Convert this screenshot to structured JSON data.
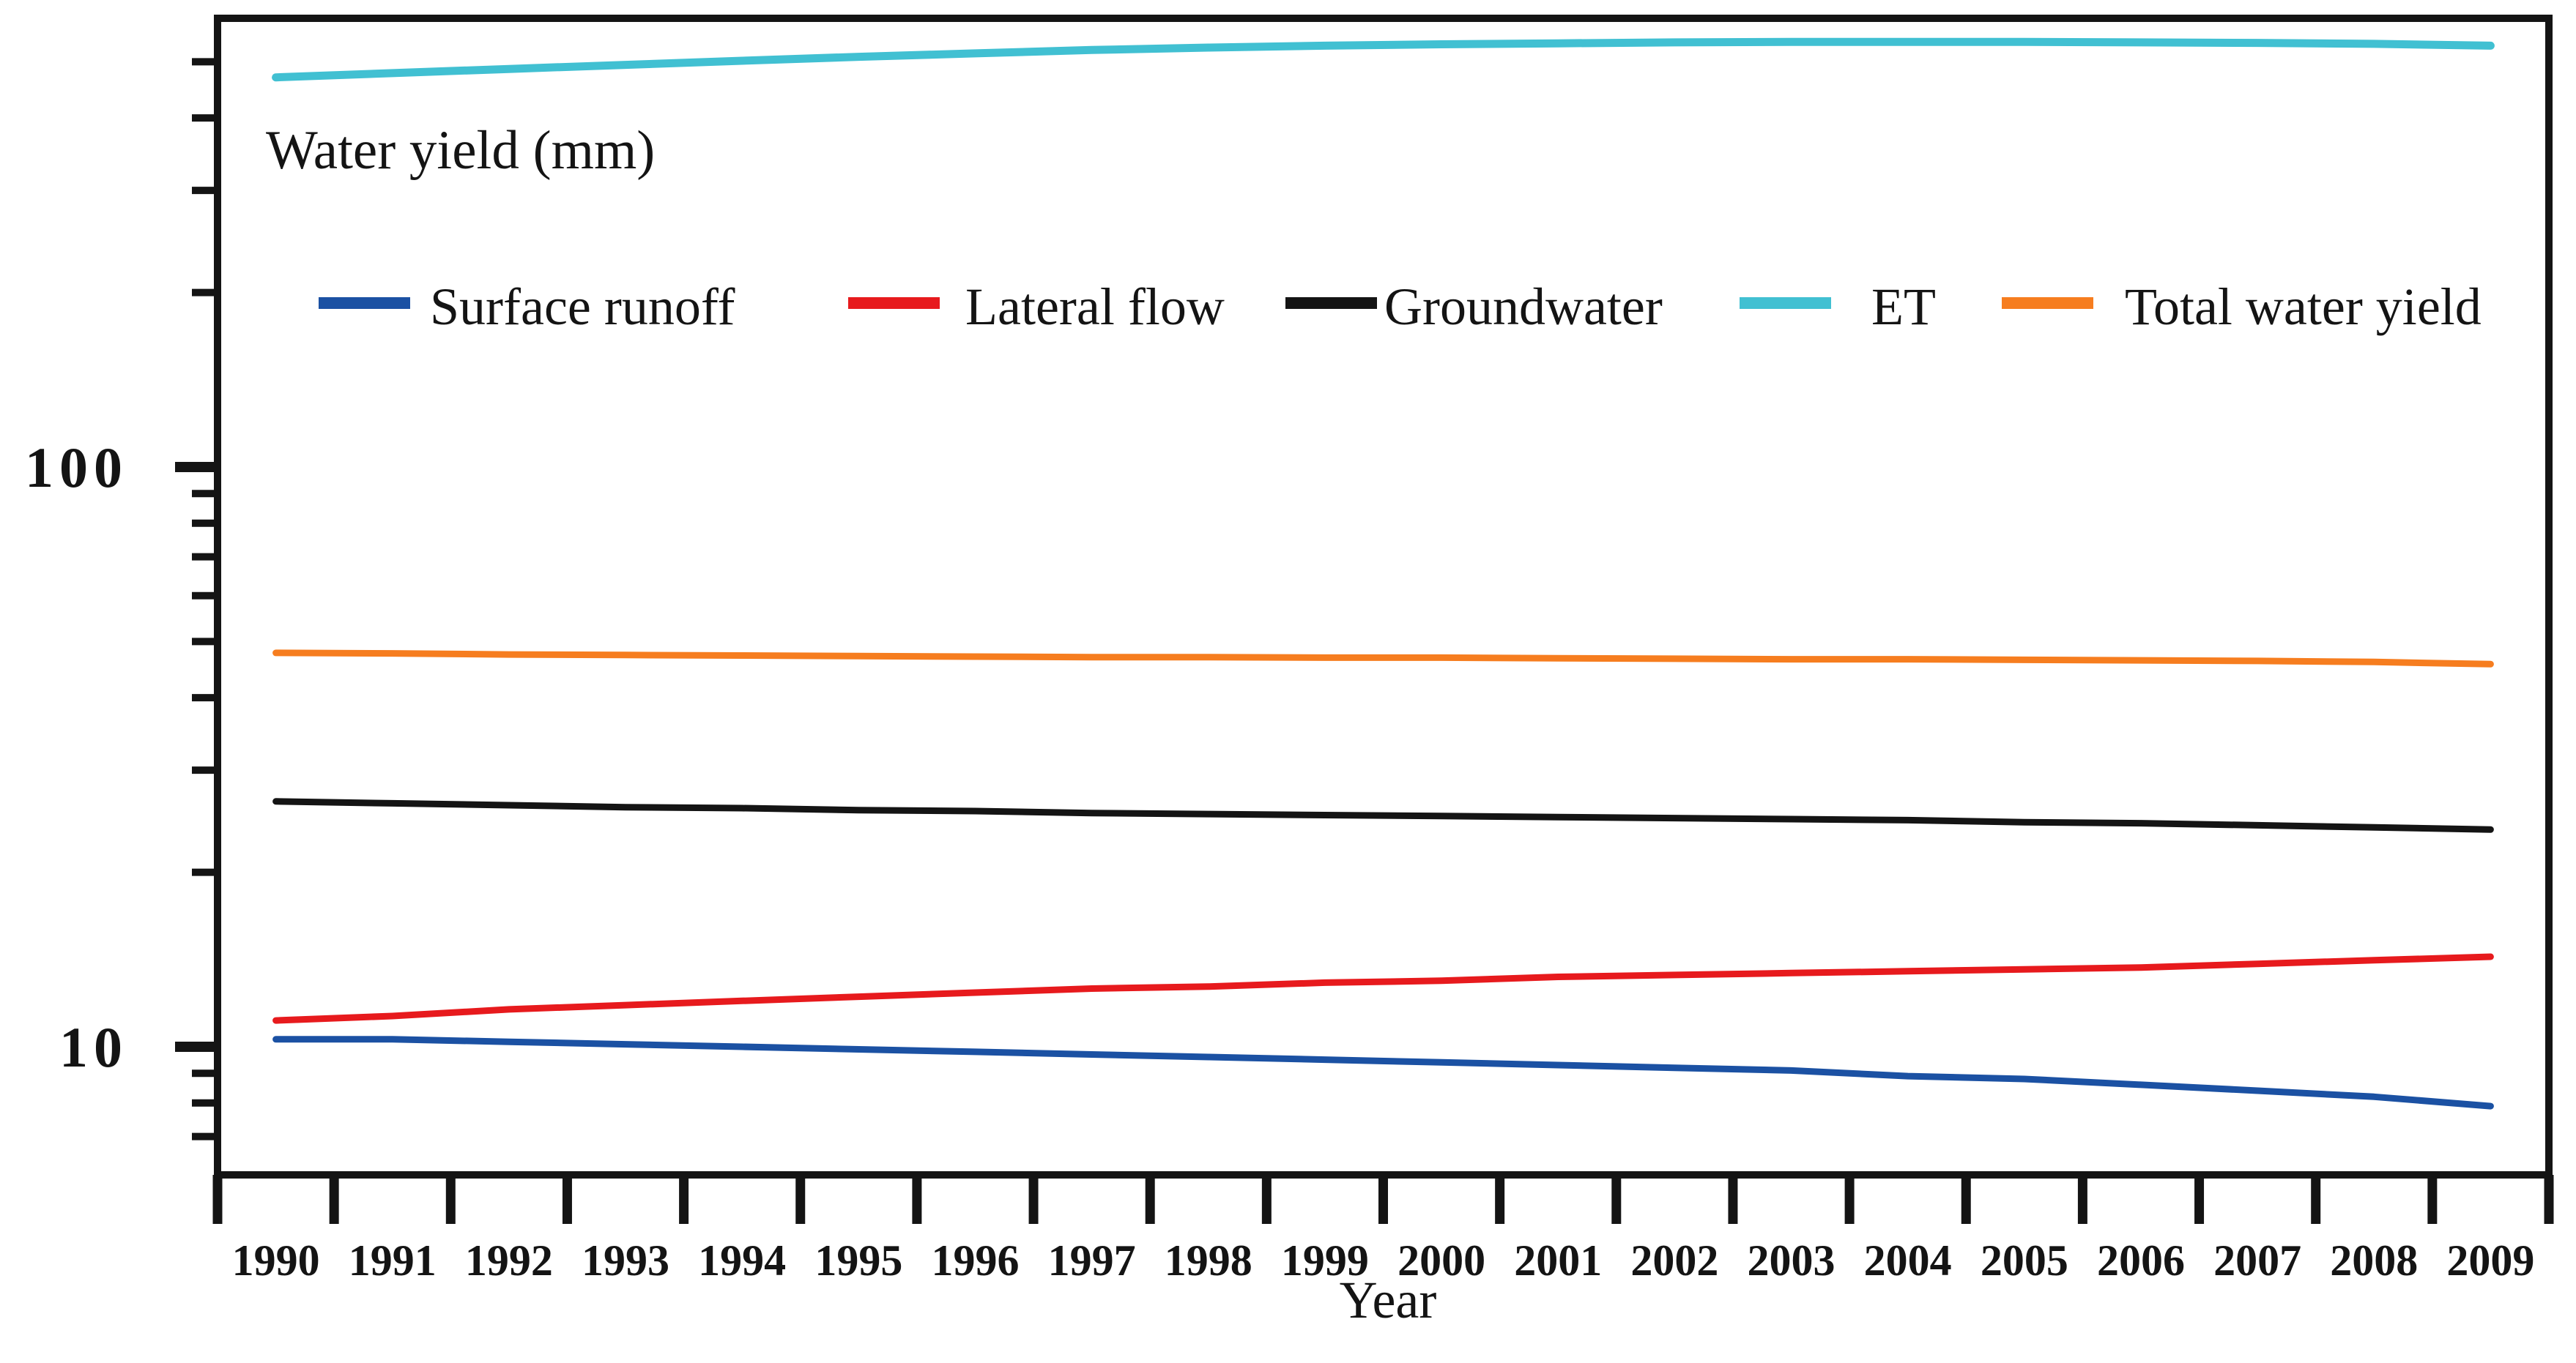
{
  "title": "Water yield (mm)",
  "axes": {
    "x_label": "Year",
    "y_major_ticks": [
      "100",
      "10"
    ],
    "x_tick_labels": [
      "1990",
      "1991",
      "1992",
      "1993",
      "1994",
      "1995",
      "1996",
      "1997",
      "1998",
      "1999",
      "2000",
      "2001",
      "2002",
      "2003",
      "2004",
      "2005",
      "2006",
      "2007",
      "2008",
      "2009"
    ]
  },
  "colors": {
    "surface_runoff": "#1b51a3",
    "lateral_flow": "#e71a1d",
    "groundwater": "#141414",
    "et": "#41c0d2",
    "total_water_yield": "#f67d1f",
    "axis": "#141414",
    "background": "#ffffff"
  },
  "legend": [
    {
      "label": "Surface runoff",
      "color": "#1b51a3"
    },
    {
      "label": "Lateral flow",
      "color": "#e71a1d"
    },
    {
      "label": "Groundwater",
      "color": "#141414"
    },
    {
      "label": "ET",
      "color": "#41c0d2"
    },
    {
      "label": "Total water yield",
      "color": "#f67d1f"
    }
  ],
  "chart_data": {
    "type": "line",
    "title": "Water yield (mm)",
    "xlabel": "Year",
    "ylabel": "Water yield (mm)",
    "y_scale": "log",
    "ylim": [
      6,
      600
    ],
    "y_ticks_labeled": [
      10,
      100
    ],
    "y_minor_ticks": [
      7,
      8,
      9,
      20,
      30,
      40,
      50,
      60,
      70,
      80,
      90,
      200,
      300,
      400,
      500
    ],
    "grid": false,
    "legend_position": "top",
    "x": [
      1990,
      1991,
      1992,
      1993,
      1994,
      1995,
      1996,
      1997,
      1998,
      1999,
      2000,
      2001,
      2002,
      2003,
      2004,
      2005,
      2006,
      2007,
      2008,
      2009
    ],
    "series": [
      {
        "name": "Surface runoff",
        "color": "#1b51a3",
        "values": [
          10.3,
          10.3,
          10.2,
          10.1,
          10.0,
          9.9,
          9.8,
          9.7,
          9.6,
          9.5,
          9.4,
          9.3,
          9.2,
          9.1,
          8.9,
          8.8,
          8.6,
          8.4,
          8.2,
          7.9
        ]
      },
      {
        "name": "Lateral flow",
        "color": "#e71a1d",
        "values": [
          11.1,
          11.3,
          11.6,
          11.8,
          12.0,
          12.2,
          12.4,
          12.6,
          12.7,
          12.9,
          13.0,
          13.2,
          13.3,
          13.4,
          13.5,
          13.6,
          13.7,
          13.9,
          14.1,
          14.3
        ]
      },
      {
        "name": "Groundwater",
        "color": "#141414",
        "values": [
          26.5,
          26.3,
          26.1,
          25.9,
          25.8,
          25.6,
          25.5,
          25.3,
          25.2,
          25.1,
          25.0,
          24.9,
          24.8,
          24.7,
          24.6,
          24.4,
          24.3,
          24.1,
          23.9,
          23.7
        ]
      },
      {
        "name": "ET",
        "color": "#41c0d2",
        "values": [
          470,
          478,
          486,
          494,
          502,
          510,
          517,
          524,
          529,
          533,
          536,
          538,
          540,
          541,
          541,
          541,
          540,
          539,
          537,
          533
        ]
      },
      {
        "name": "Total water yield",
        "color": "#f67d1f",
        "values": [
          47.8,
          47.7,
          47.5,
          47.4,
          47.3,
          47.2,
          47.1,
          47.0,
          47.0,
          46.9,
          46.9,
          46.8,
          46.7,
          46.6,
          46.6,
          46.5,
          46.4,
          46.3,
          46.1,
          45.7
        ]
      }
    ]
  }
}
